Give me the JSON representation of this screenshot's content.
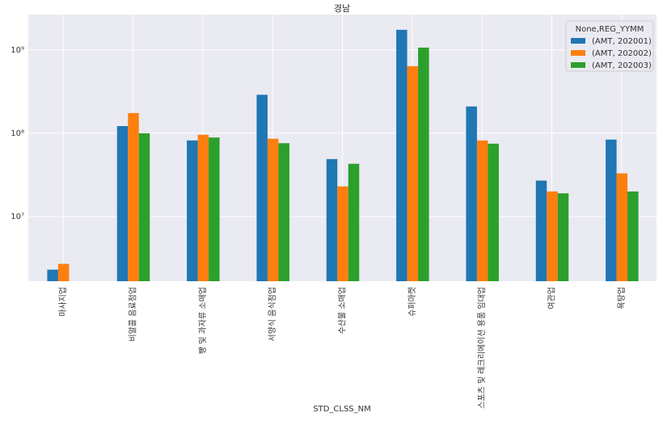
{
  "chart_data": {
    "type": "bar",
    "title": "경남",
    "x_label": "STD_CLSS_NM",
    "categories": [
      "마사지업",
      "비알콜 음료점업",
      "빵 및 과자류 소매업",
      "서양식 음식점업",
      "수산물 소매업",
      "슈퍼마켓",
      "스포츠 및 레크리에이션 용품 임대업",
      "여관업",
      "욕탕업"
    ],
    "legend_title": "None,REG_YYMM",
    "legend_position": "upper right",
    "series": [
      {
        "name": "(AMT, 202001)",
        "color": "#1f77b4",
        "values": [
          2300000,
          122000000,
          82000000,
          290000000,
          49000000,
          1750000000,
          210000000,
          27000000,
          84000000
        ]
      },
      {
        "name": "(AMT, 202002)",
        "color": "#ff7f0e",
        "values": [
          2700000,
          175000000,
          96000000,
          86000000,
          23000000,
          640000000,
          82000000,
          20000000,
          33000000
        ]
      },
      {
        "name": "(AMT, 202003)",
        "color": "#2ca02c",
        "values": [
          null,
          100000000,
          89000000,
          76000000,
          43000000,
          1070000000,
          75000000,
          19000000,
          20000000
        ]
      }
    ],
    "log_y": true,
    "grid": true,
    "ylim": [
      1670000,
      2670000000
    ],
    "yticks": [
      {
        "value": 10000000,
        "label": "10⁷"
      },
      {
        "value": 100000000,
        "label": "10⁸"
      },
      {
        "value": 1000000000,
        "label": "10⁹"
      }
    ]
  }
}
